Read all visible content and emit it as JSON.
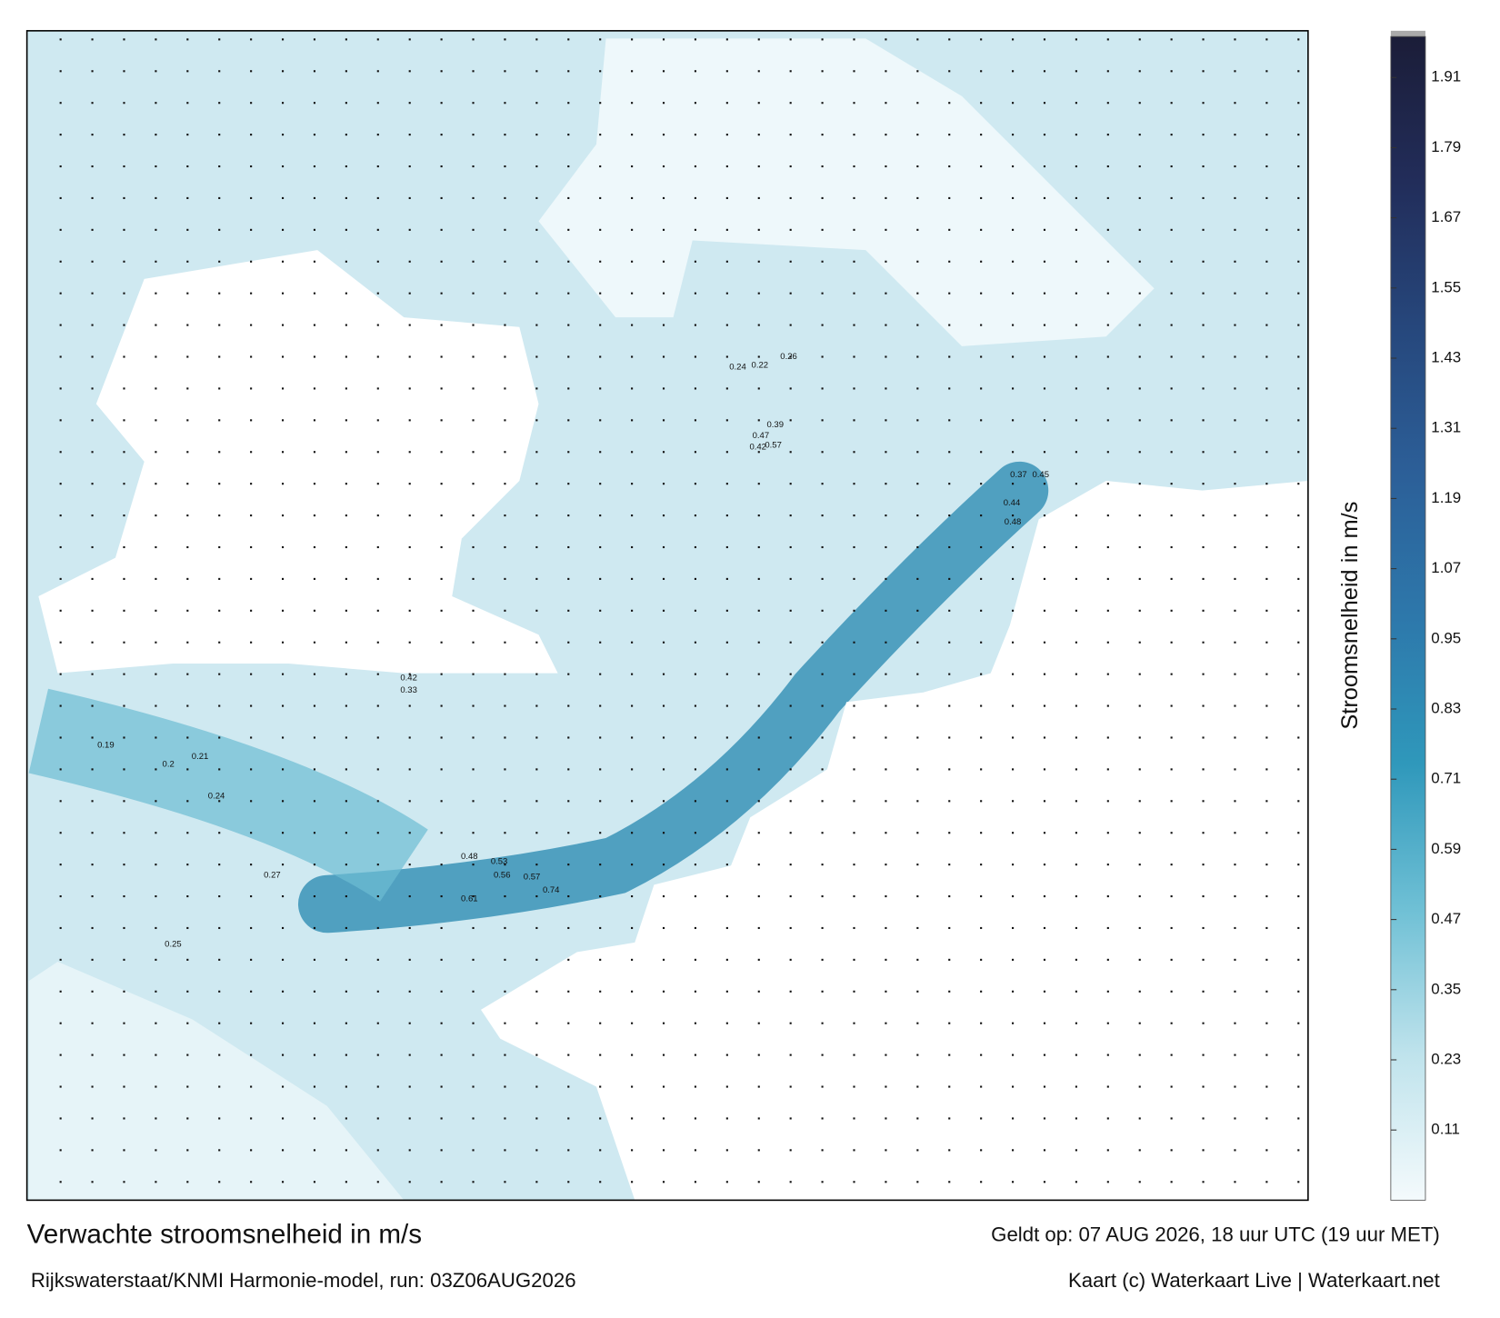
{
  "chart_data": {
    "type": "map",
    "title": "Verwachte stroomsnelheid in m/s",
    "subtitle": "Rijkswaterstaat/KNMI Harmonie-model, run: 03Z06AUG2026",
    "valid_time": "Geldt op: 07 AUG 2026, 18 uur UTC (19 uur MET)",
    "credits": "Kaart (c) Waterkaart Live | Waterkaart.net",
    "colorbar_label": "Stroomsnelheid in m/s",
    "ylim": [
      -0.01,
      1.98
    ],
    "yticks": [
      0.11,
      0.23,
      0.35,
      0.47,
      0.59,
      0.71,
      0.83,
      0.95,
      1.07,
      1.19,
      1.31,
      1.43,
      1.55,
      1.67,
      1.79,
      1.91
    ],
    "colormap": [
      "#f4fafc",
      "#bfe3ec",
      "#6fc0d5",
      "#2f98bb",
      "#2d78ab",
      "#2c5f98",
      "#26477c",
      "#222d5a",
      "#1b1d38"
    ],
    "speed_labels": [
      0.74,
      0.61,
      0.57,
      0.56,
      0.53,
      0.48,
      0.45,
      0.37,
      0.44,
      0.48,
      0.57,
      0.47,
      0.42,
      0.39,
      0.42,
      0.33,
      0.26,
      0.24,
      0.22,
      0.19,
      0.2,
      0.21,
      0.24,
      0.27,
      0.25
    ]
  }
}
